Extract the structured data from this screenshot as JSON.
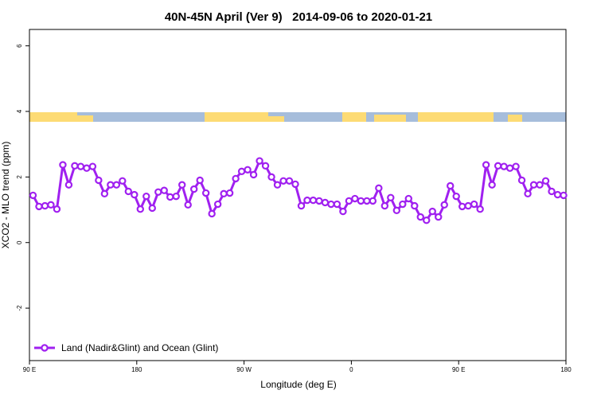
{
  "chart_data": {
    "type": "line",
    "title": "40N-45N April (Ver 9)   2014-09-06 to 2020-01-21",
    "x_label": "Longitude (deg E)",
    "y_label": "XCO2 - MLO trend (ppm)",
    "xlim": [
      90,
      540
    ],
    "ylim": [
      -3.6,
      6.5
    ],
    "xticks": [
      {
        "value": 90,
        "label": "90 E"
      },
      {
        "value": 180,
        "label": "180"
      },
      {
        "value": 270,
        "label": "90 W"
      },
      {
        "value": 360,
        "label": "0"
      },
      {
        "value": 450,
        "label": "90 E"
      },
      {
        "value": 540,
        "label": "180"
      }
    ],
    "yticks": [
      -2,
      0,
      2,
      4,
      6
    ],
    "legend": "bottomleft",
    "x": [
      93,
      98,
      103,
      108,
      113,
      118,
      123,
      128,
      133,
      138,
      143,
      148,
      153,
      158,
      163,
      168,
      173,
      178,
      183,
      188,
      193,
      198,
      203,
      208,
      213,
      218,
      223,
      228,
      233,
      238,
      243,
      248,
      253,
      258,
      263,
      268,
      273,
      278,
      283,
      288,
      293,
      298,
      303,
      308,
      313,
      318,
      323,
      328,
      333,
      338,
      343,
      348,
      353,
      358,
      363,
      368,
      373,
      378,
      383,
      388,
      393,
      398,
      403,
      408,
      413,
      418,
      423,
      428,
      433,
      438,
      443,
      448,
      453,
      458,
      463,
      468,
      473,
      478,
      483,
      488,
      493,
      498,
      503,
      508,
      513,
      518,
      523,
      528,
      533,
      538
    ],
    "series": [
      {
        "name": "Land (Nadir&Glint) and Ocean (Glint)",
        "color": "#a020f0",
        "values": [
          1.44,
          1.1,
          1.12,
          1.15,
          1.02,
          2.37,
          1.76,
          2.34,
          2.32,
          2.27,
          2.32,
          1.9,
          1.49,
          1.76,
          1.76,
          1.88,
          1.56,
          1.46,
          1.02,
          1.41,
          1.05,
          1.54,
          1.59,
          1.39,
          1.41,
          1.76,
          1.15,
          1.63,
          1.9,
          1.51,
          0.88,
          1.17,
          1.49,
          1.51,
          1.95,
          2.17,
          2.22,
          2.07,
          2.49,
          2.34,
          2.0,
          1.76,
          1.88,
          1.88,
          1.78,
          1.12,
          1.29,
          1.29,
          1.27,
          1.22,
          1.17,
          1.17,
          0.95,
          1.27,
          1.34,
          1.27,
          1.27,
          1.27,
          1.66,
          1.12,
          1.37,
          0.98,
          1.17,
          1.34,
          1.12,
          0.78,
          0.68,
          0.95,
          0.78,
          1.15,
          1.73,
          1.41,
          1.1,
          1.12,
          1.17,
          1.02,
          2.37,
          1.76,
          2.34,
          2.32,
          2.27,
          2.32,
          1.9,
          1.49,
          1.76,
          1.76,
          1.88,
          1.56,
          1.46,
          1.44
        ]
      }
    ]
  }
}
